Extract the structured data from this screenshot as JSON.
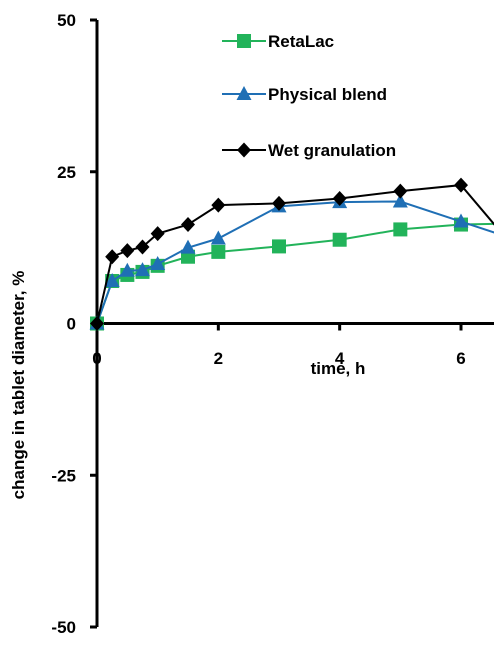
{
  "chart_data": {
    "type": "line",
    "xlabel": "time, h",
    "ylabel": "change in tablet diameter, %",
    "xlim": [
      0,
      6.65
    ],
    "ylim": [
      -50,
      50
    ],
    "x_ticks": [
      0,
      2,
      4,
      6
    ],
    "y_ticks": [
      50,
      25,
      0,
      -25,
      -50
    ],
    "grid": false,
    "legend_position": "top-center",
    "series": [
      {
        "name": "RetaLac",
        "color": "#22b35a",
        "marker": "square",
        "x": [
          0,
          0.25,
          0.5,
          0.75,
          1,
          1.5,
          2,
          3,
          4,
          5,
          6,
          7
        ],
        "y": [
          0,
          7,
          8,
          8.5,
          9.5,
          11,
          11.8,
          12.7,
          13.8,
          15.5,
          16.3,
          16.5
        ]
      },
      {
        "name": "Physical blend",
        "color": "#1f6fb5",
        "marker": "triangle",
        "x": [
          0,
          0.25,
          0.5,
          0.75,
          1,
          1.5,
          2,
          3,
          4,
          5,
          6,
          7
        ],
        "y": [
          0,
          7,
          8.7,
          8.8,
          9.8,
          12.5,
          14,
          19.3,
          20,
          20.1,
          16.8,
          13.5
        ]
      },
      {
        "name": "Wet granulation",
        "color": "#000000",
        "marker": "diamond",
        "x": [
          0,
          0.25,
          0.5,
          0.75,
          1,
          1.5,
          2,
          3,
          4,
          5,
          6,
          7
        ],
        "y": [
          0,
          11,
          12,
          12.6,
          14.8,
          16.3,
          19.5,
          19.8,
          20.6,
          21.8,
          22.8,
          11
        ]
      }
    ]
  }
}
